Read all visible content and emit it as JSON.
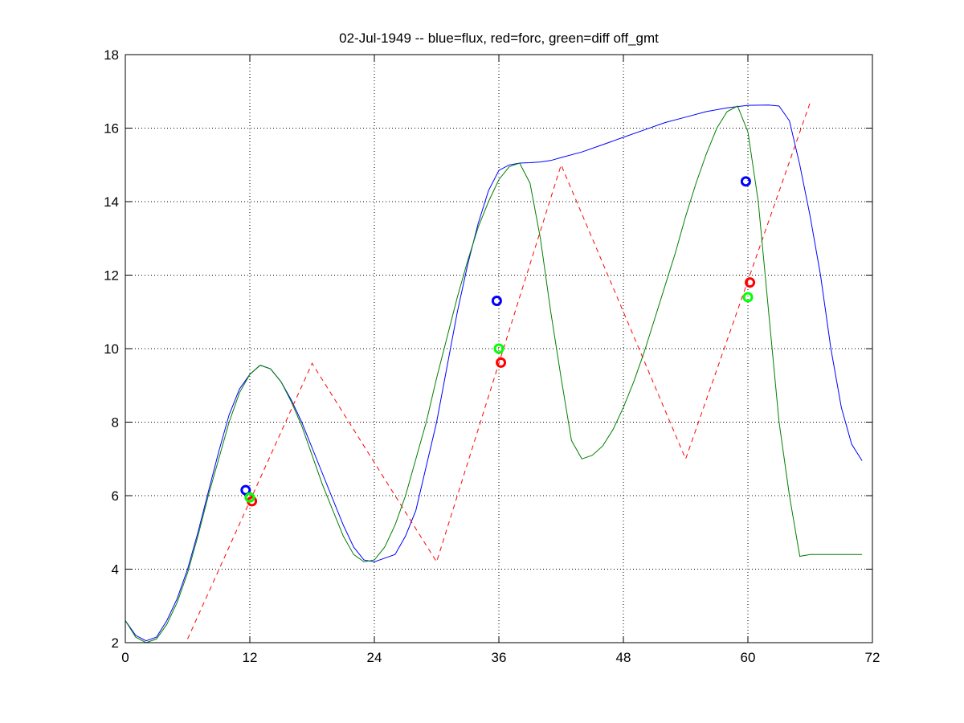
{
  "chart_data": {
    "type": "line",
    "title": "02-Jul-1949 -- blue=flux, red=forc, green=diff off_gmt",
    "xlabel": "",
    "ylabel": "",
    "xlim": [
      0,
      72
    ],
    "ylim": [
      2,
      18
    ],
    "xticks": [
      0,
      12,
      24,
      36,
      48,
      60,
      72
    ],
    "yticks": [
      2,
      4,
      6,
      8,
      10,
      12,
      14,
      16,
      18
    ],
    "grid": true,
    "series": [
      {
        "color": "#0000ff",
        "style": "solid",
        "x": [
          0,
          1,
          2,
          3,
          4,
          5,
          6,
          7,
          8,
          9,
          10,
          11,
          12,
          13,
          14,
          15,
          16,
          17,
          18,
          19,
          20,
          21,
          22,
          23,
          24,
          25,
          26,
          27,
          28,
          29,
          30,
          31,
          32,
          33,
          34,
          35,
          36,
          37,
          38,
          39,
          40,
          41,
          42,
          44,
          46,
          48,
          50,
          52,
          54,
          56,
          58,
          60,
          62,
          63,
          64,
          65,
          66,
          67,
          68,
          69,
          70,
          71
        ],
        "y": [
          2.6,
          2.2,
          2.05,
          2.15,
          2.6,
          3.2,
          4.0,
          5.0,
          6.1,
          7.2,
          8.2,
          8.9,
          9.3,
          9.55,
          9.45,
          9.1,
          8.6,
          8.0,
          7.3,
          6.6,
          5.9,
          5.2,
          4.6,
          4.25,
          4.2,
          4.3,
          4.4,
          4.9,
          5.6,
          6.8,
          8.0,
          9.5,
          11.0,
          12.3,
          13.4,
          14.3,
          14.85,
          15.0,
          15.05,
          15.06,
          15.08,
          15.12,
          15.2,
          15.35,
          15.55,
          15.75,
          15.95,
          16.15,
          16.3,
          16.45,
          16.55,
          16.62,
          16.63,
          16.6,
          16.2,
          15.0,
          13.6,
          12.0,
          10.0,
          8.4,
          7.4,
          6.95
        ]
      },
      {
        "color": "#ff0000",
        "style": "dashed",
        "x": [
          6,
          18,
          30,
          42,
          54,
          66
        ],
        "y": [
          2.1,
          9.6,
          4.2,
          15.0,
          7.0,
          16.7
        ]
      },
      {
        "color": "#007f00",
        "style": "solid",
        "x": [
          0,
          1,
          2,
          3,
          4,
          5,
          6,
          7,
          8,
          9,
          10,
          11,
          12,
          13,
          14,
          15,
          16,
          17,
          18,
          19,
          20,
          21,
          22,
          23,
          24,
          25,
          26,
          27,
          28,
          29,
          30,
          31,
          32,
          33,
          34,
          35,
          36,
          37,
          38,
          39,
          40,
          41,
          42,
          43,
          44,
          45,
          46,
          47,
          48,
          49,
          50,
          51,
          52,
          53,
          54,
          55,
          56,
          57,
          58,
          59,
          60,
          61,
          62,
          63,
          64,
          65,
          66,
          67,
          68,
          69,
          70,
          71
        ],
        "y": [
          2.6,
          2.15,
          2.0,
          2.1,
          2.5,
          3.1,
          3.9,
          4.9,
          6.0,
          7.0,
          8.0,
          8.8,
          9.3,
          9.55,
          9.45,
          9.1,
          8.55,
          7.9,
          7.1,
          6.3,
          5.6,
          4.9,
          4.4,
          4.2,
          4.25,
          4.6,
          5.2,
          6.0,
          7.0,
          8.0,
          9.2,
          10.3,
          11.4,
          12.4,
          13.3,
          14.0,
          14.6,
          14.95,
          15.05,
          14.5,
          13.0,
          11.0,
          9.2,
          7.5,
          7.0,
          7.1,
          7.35,
          7.8,
          8.4,
          9.1,
          9.9,
          10.8,
          11.7,
          12.6,
          13.6,
          14.5,
          15.3,
          16.0,
          16.45,
          16.6,
          15.9,
          14.0,
          11.0,
          8.0,
          6.0,
          4.35,
          4.4,
          4.4,
          4.4,
          4.4,
          4.4,
          4.4
        ]
      }
    ],
    "markers": [
      {
        "color": "#0000ff",
        "points": [
          [
            11.6,
            6.15
          ],
          [
            35.8,
            11.3
          ],
          [
            59.8,
            14.55
          ]
        ]
      },
      {
        "color": "#ff0000",
        "points": [
          [
            12.2,
            5.85
          ],
          [
            36.2,
            9.62
          ],
          [
            60.2,
            11.8
          ]
        ]
      },
      {
        "color": "#00ff00",
        "points": [
          [
            12.0,
            5.95
          ],
          [
            36.0,
            10.0
          ],
          [
            60.0,
            11.4
          ]
        ]
      }
    ]
  }
}
